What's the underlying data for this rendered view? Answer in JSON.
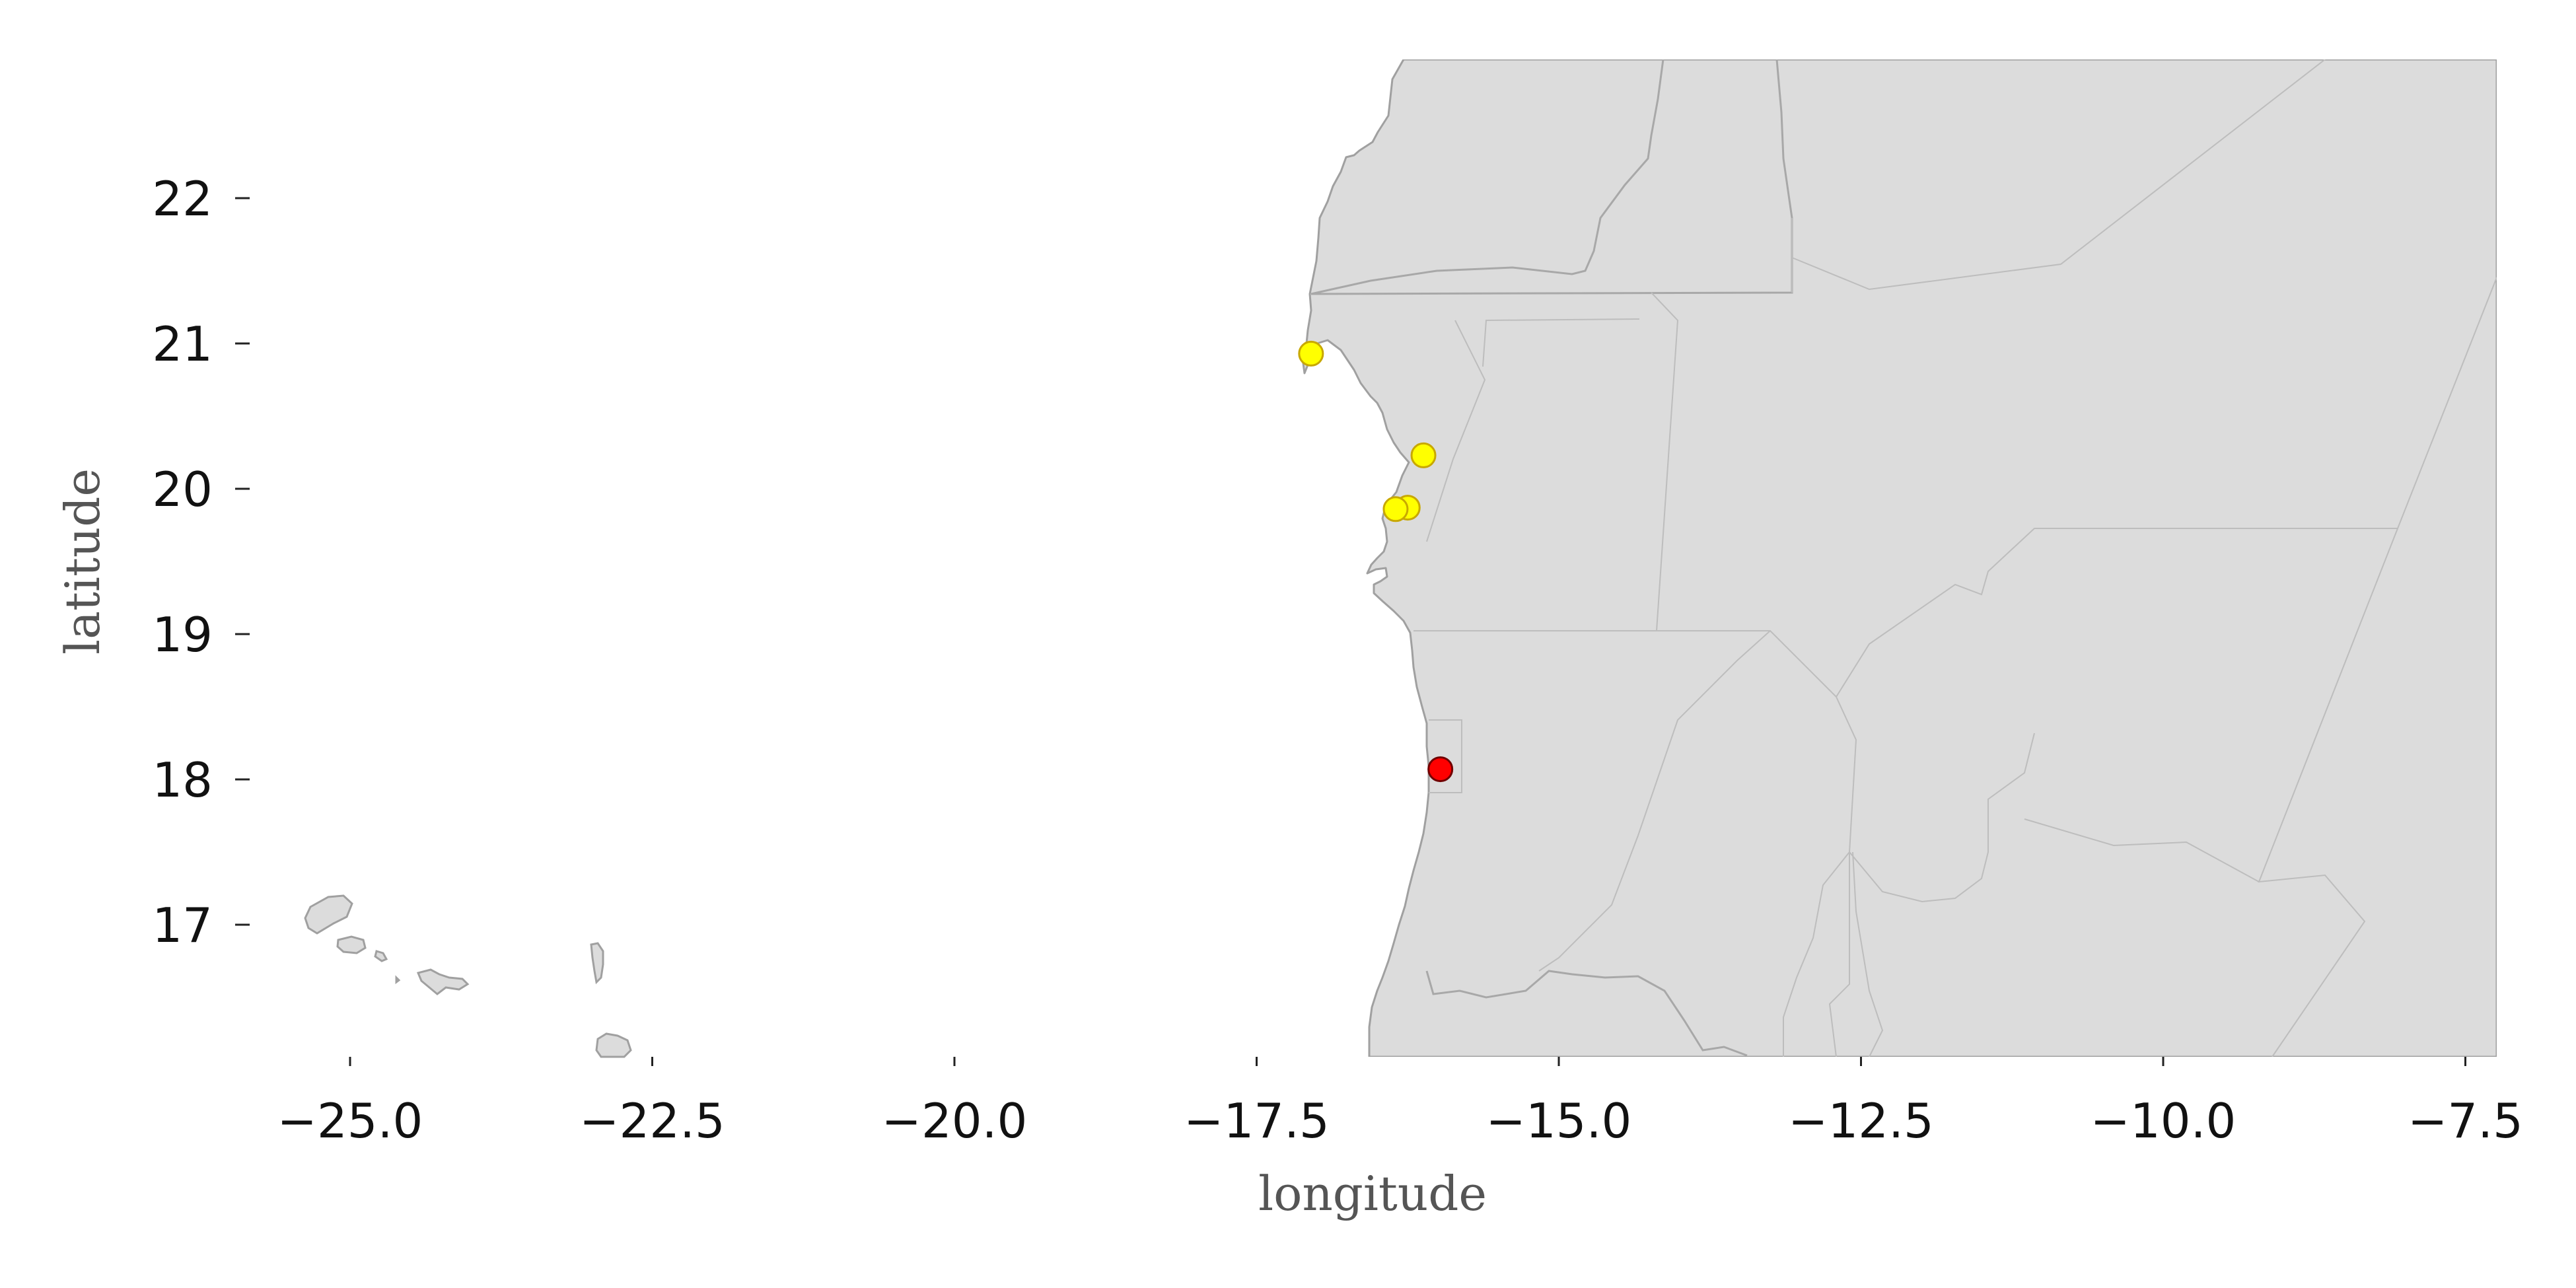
{
  "chart_data": {
    "type": "scatter",
    "title": "",
    "xlabel": "longitude",
    "ylabel": "latitude",
    "xlim": [
      -25.5,
      -7.2
    ],
    "ylim": [
      16.1,
      23.0
    ],
    "x_ticks": [
      -25.0,
      -22.5,
      -20.0,
      -17.5,
      -15.0,
      -12.5,
      -10.0,
      -7.5
    ],
    "x_tick_labels": [
      "−25.0",
      "−22.5",
      "−20.0",
      "−17.5",
      "−15.0",
      "−12.5",
      "−10.0",
      "−7.5"
    ],
    "y_ticks": [
      17,
      18,
      19,
      20,
      21,
      22
    ],
    "y_tick_labels": [
      "17",
      "18",
      "19",
      "20",
      "21",
      "22"
    ],
    "grid": false,
    "legend": "none",
    "land_color": "#dcdcdc",
    "border_color": "#a8a8a8",
    "series": [
      {
        "color": "#ffff00",
        "points": [
          {
            "x": -17.05,
            "y": 20.93
          },
          {
            "x": -16.12,
            "y": 20.23
          },
          {
            "x": -16.25,
            "y": 19.87
          },
          {
            "x": -16.35,
            "y": 19.86
          }
        ]
      },
      {
        "color": "#ff0000",
        "points": [
          {
            "x": -15.98,
            "y": 18.07
          }
        ]
      }
    ]
  }
}
